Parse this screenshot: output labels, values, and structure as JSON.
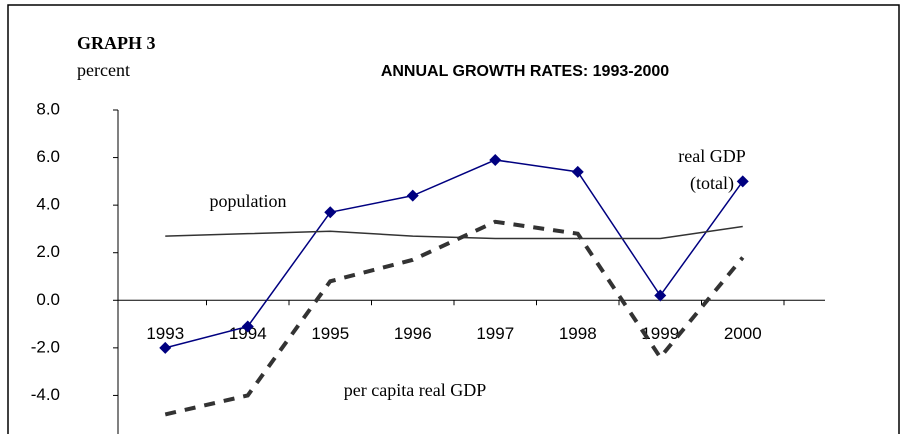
{
  "chart_data": {
    "type": "line",
    "label": "GRAPH 3",
    "y_label": "percent",
    "title": "ANNUAL GROWTH RATES: 1993-2000",
    "categories": [
      "1993",
      "1994",
      "1995",
      "1996",
      "1997",
      "1998",
      "1999",
      "2000"
    ],
    "series": [
      {
        "name": "real GDP",
        "color": "#000080",
        "marker": "diamond",
        "dash": false,
        "values": [
          -2.0,
          -1.1,
          3.7,
          4.4,
          5.9,
          5.4,
          0.2,
          5.0
        ]
      },
      {
        "name": "population",
        "color": "#333333",
        "marker": "none",
        "dash": false,
        "values": [
          2.7,
          2.8,
          2.9,
          2.7,
          2.6,
          2.6,
          2.6,
          3.1
        ]
      },
      {
        "name": "per capita real GDP",
        "color": "#333333",
        "marker": "none",
        "dash": true,
        "values": [
          -4.8,
          -4.0,
          0.8,
          1.7,
          3.3,
          2.8,
          -2.4,
          1.8
        ]
      }
    ],
    "annotations": [
      "(total)"
    ],
    "ylim": [
      -6,
      8
    ],
    "yticks": [
      {
        "value": 8,
        "label": "8.0"
      },
      {
        "value": 6,
        "label": "6.0"
      },
      {
        "value": 4,
        "label": "4.0"
      },
      {
        "value": 2,
        "label": "2.0"
      },
      {
        "value": 0,
        "label": "0.0"
      },
      {
        "value": -2,
        "label": "-2.0"
      },
      {
        "value": -4,
        "label": "-4.0"
      }
    ],
    "grid": false
  }
}
